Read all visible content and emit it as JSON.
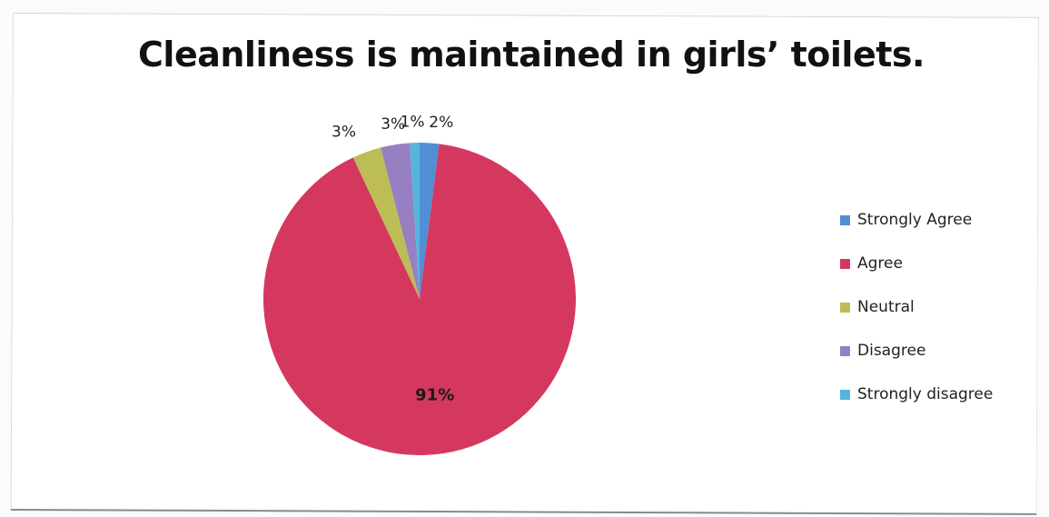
{
  "chart_data": {
    "type": "pie",
    "title": "Cleanliness is maintained in girls’ toilets.",
    "categories": [
      "Strongly Agree",
      "Agree",
      "Neutral",
      "Disagree",
      "Strongly disagree"
    ],
    "values": [
      2,
      91,
      3,
      3,
      1
    ],
    "data_labels": [
      "2%",
      "91%",
      "3%",
      "3%",
      "1%"
    ],
    "colors": [
      "#4f8fd6",
      "#d5385f",
      "#bcbd55",
      "#9680c2",
      "#55b5dc"
    ],
    "legend_placement": "right",
    "start_angle_deg": 0,
    "direction": "clockwise"
  }
}
